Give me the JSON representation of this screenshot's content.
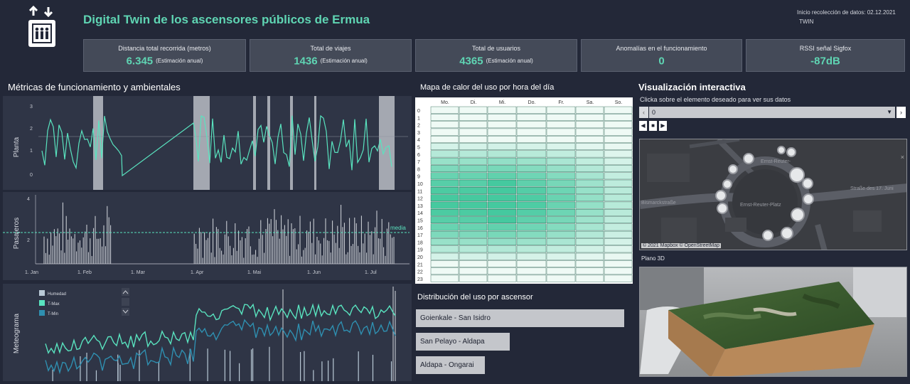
{
  "header": {
    "title": "Digital Twin de los ascensores públicos de Ermua",
    "start_label": "Inicio recolección de datos: 02.12.2021",
    "sub_label": "TWIN"
  },
  "kpis": [
    {
      "label": "Distancia total recorrida (metros)",
      "value": "6.345",
      "unit": "(Estimación anual)"
    },
    {
      "label": "Total de viajes",
      "value": "1436",
      "unit": "(Estimación anual)"
    },
    {
      "label": "Total de usuarios",
      "value": "4365",
      "unit": "(Estimación anual)"
    },
    {
      "label": "Anomalías en el funcionamiento",
      "value": "0",
      "unit": ""
    },
    {
      "label": "RSSI señal Sigfox",
      "value": "-87dB",
      "unit": ""
    }
  ],
  "metrics": {
    "title": "Métricas de funcionamiento y ambientales",
    "planta": {
      "ylabel": "Planta",
      "yticks": [
        "3",
        "2",
        "1",
        "0"
      ]
    },
    "pasajeros": {
      "ylabel": "Pasajeros",
      "yticks": [
        "4",
        "2"
      ],
      "media_label": "media",
      "xticks": [
        "1. Jan",
        "1. Feb",
        "1. Mar",
        "1. Apr",
        "1. Mai",
        "1. Jun",
        "1. Jul"
      ]
    },
    "meteograma": {
      "ylabel": "Meteograma",
      "legend": [
        {
          "name": "Humedad",
          "color": "#b9c9d6"
        },
        {
          "name": "T-Max",
          "color": "#59e3bf"
        },
        {
          "name": "T-Min",
          "color": "#2f8fb0"
        }
      ]
    }
  },
  "heatmap": {
    "title": "Mapa de calor del uso por hora del día",
    "days": [
      "Mo.",
      "Di.",
      "Mi.",
      "Do.",
      "Fr.",
      "Sa.",
      "So."
    ],
    "hours": [
      "0",
      "1",
      "2",
      "3",
      "4",
      "5",
      "6",
      "7",
      "8",
      "9",
      "10",
      "11",
      "12",
      "13",
      "14",
      "15",
      "16",
      "17",
      "18",
      "19",
      "20",
      "21",
      "22",
      "23"
    ],
    "low_color": "#f4fbf8",
    "high_color": "#45c99f"
  },
  "distribution": {
    "title": "Distribución del uso por ascensor",
    "items": [
      {
        "label": "Goienkale - San Isidro",
        "share": 1.0
      },
      {
        "label": "San Pelayo - Aldapa",
        "share": 0.45
      },
      {
        "label": "Aldapa - Ongarai",
        "share": 0.33
      }
    ]
  },
  "interactive": {
    "title": "Visualización interactiva",
    "subtitle": "Clicka sobre el elemento deseado para ver sus datos",
    "select_value": "0",
    "map_attribution": "© 2021 Mapbox © OpenStreetMap",
    "map_labels": {
      "street_1": "Bismarckstraße",
      "street_2": "Straße des 17. Juni",
      "street_3": "Ernst-Reuter-",
      "place": "Ernst-Reuter-Platz"
    },
    "plano_label": "Plano 3D"
  }
}
